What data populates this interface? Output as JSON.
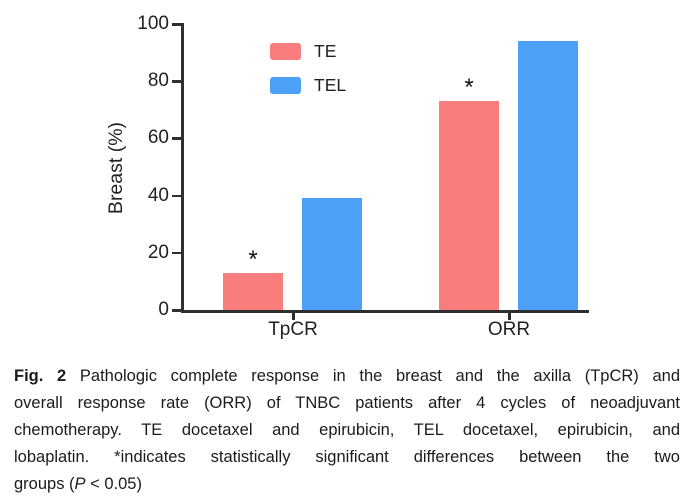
{
  "chart_data": {
    "type": "bar",
    "categories": [
      "TpCR",
      "ORR"
    ],
    "series": [
      {
        "name": "TE",
        "color": "#FA7D7D",
        "values": [
          13,
          73
        ]
      },
      {
        "name": "TEL",
        "color": "#4CA0F8",
        "values": [
          39,
          94
        ]
      }
    ],
    "title": "",
    "xlabel": "",
    "ylabel": "Breast (%)",
    "ylim": [
      0,
      100
    ],
    "yticks": [
      0,
      20,
      40,
      60,
      80,
      100
    ],
    "grid": false,
    "legend_position": "upper-left-inside",
    "annotations": [
      {
        "category": "TpCR",
        "series": "TE",
        "symbol": "*"
      },
      {
        "category": "ORR",
        "series": "TE",
        "symbol": "*"
      }
    ],
    "axis_color": "#2e2f31",
    "text_color": "#231f20"
  },
  "figure": {
    "caption": {
      "fig_label": "Fig. 2",
      "line1_rest": " Pathologic complete response in the breast and the axilla (TpCR) and",
      "line2": "overall response rate (ORR) of TNBC patients after 4 cycles of neoadjuvant",
      "line3": "chemotherapy. TE docetaxel and epirubicin, TEL docetaxel, epirubicin, and",
      "line4": "lobaplatin. *indicates statistically significant differences between the two",
      "line5_pre": "groups (",
      "line5_italic": "P",
      "line5_post": " < 0.05)"
    }
  }
}
